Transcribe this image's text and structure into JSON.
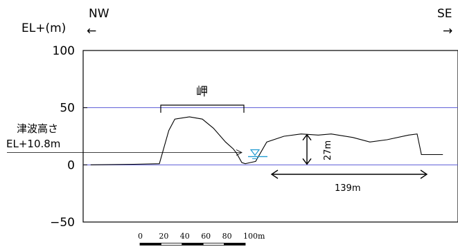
{
  "chart_data": {
    "type": "line",
    "ylabel": "EL+(m)",
    "ylim": [
      -50,
      100
    ],
    "yticks": [
      100,
      50,
      0,
      -50
    ],
    "gridlines_at": [
      50,
      0
    ],
    "grid": "horizontal-blue",
    "direction_left": "NW",
    "direction_right": "SE",
    "arrow_left": "←",
    "arrow_right": "→",
    "series": [
      {
        "values": [
          {
            "x": -80,
            "y": 0
          },
          {
            "x": -30,
            "y": 0.5
          },
          {
            "x": 0,
            "y": 1
          },
          {
            "x": 11,
            "y": 30
          },
          {
            "x": 18,
            "y": 40
          },
          {
            "x": 35,
            "y": 42
          },
          {
            "x": 50,
            "y": 40
          },
          {
            "x": 63,
            "y": 32
          },
          {
            "x": 77,
            "y": 20
          },
          {
            "x": 86,
            "y": 14
          },
          {
            "x": 90,
            "y": 10
          },
          {
            "x": 96,
            "y": 2
          },
          {
            "x": 100,
            "y": 1
          },
          {
            "x": 106,
            "y": 2
          },
          {
            "x": 112,
            "y": 3
          },
          {
            "x": 125,
            "y": 20
          },
          {
            "x": 145,
            "y": 25
          },
          {
            "x": 165,
            "y": 27
          },
          {
            "x": 185,
            "y": 26
          },
          {
            "x": 200,
            "y": 27
          },
          {
            "x": 225,
            "y": 24
          },
          {
            "x": 245,
            "y": 20
          },
          {
            "x": 265,
            "y": 22
          },
          {
            "x": 290,
            "y": 26
          },
          {
            "x": 300,
            "y": 27
          },
          {
            "x": 305,
            "y": 9
          },
          {
            "x": 330,
            "y": 9
          }
        ]
      }
    ],
    "annotations": {
      "cape_label": "岬",
      "tsunami_label_line1": "津波高さ",
      "tsunami_label_line2": "EL+10.8m",
      "tsunami_level": 10.8,
      "height_label": "27m",
      "height_value": 27,
      "width_label": "139m",
      "width_value": 139
    },
    "scale_bar": {
      "tick_labels": [
        "0",
        "20",
        "40",
        "60",
        "80",
        "100m"
      ]
    }
  }
}
